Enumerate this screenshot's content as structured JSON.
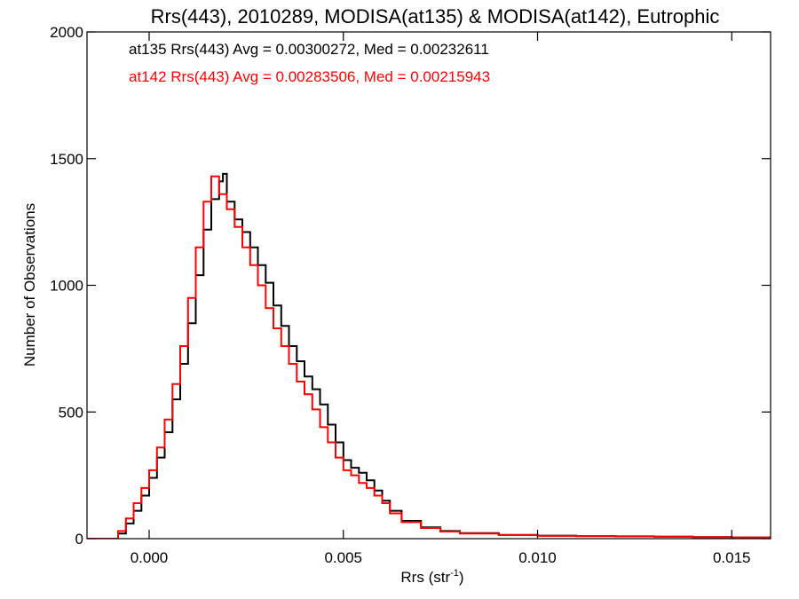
{
  "chart_data": {
    "type": "line",
    "step": true,
    "title": "Rrs(443), 2010289, MODISA(at135) & MODISA(at142), Eutrophic",
    "xlabel": "Rrs (str",
    "xlabel_sup": "-1",
    "xlabel_tail": ")",
    "ylabel": "Number of Observations",
    "xlim": [
      -0.0016,
      0.016
    ],
    "ylim": [
      0,
      2000
    ],
    "xticks": [
      {
        "value": 0.0,
        "label": "0.000"
      },
      {
        "value": 0.005,
        "label": "0.005"
      },
      {
        "value": 0.01,
        "label": "0.010"
      },
      {
        "value": 0.015,
        "label": "0.015"
      }
    ],
    "yticks": [
      {
        "value": 0,
        "label": "0"
      },
      {
        "value": 500,
        "label": "500"
      },
      {
        "value": 1000,
        "label": "1000"
      },
      {
        "value": 1500,
        "label": "1500"
      },
      {
        "value": 2000,
        "label": "2000"
      }
    ],
    "annotations": [
      {
        "text": "at135 Rrs(443) Avg = 0.00300272, Med = 0.00232611",
        "color": "#000000"
      },
      {
        "text": "at142 Rrs(443) Avg = 0.00283506, Med = 0.00215943",
        "color": "#ff0000"
      }
    ],
    "grid": false,
    "series": [
      {
        "color": "#000000",
        "x": [
          -0.0016,
          -0.0009,
          -0.0008,
          -0.0006,
          -0.0004,
          -0.0002,
          0.0,
          0.0002,
          0.0004,
          0.0006,
          0.0008,
          0.001,
          0.0012,
          0.0014,
          0.0016,
          0.0018,
          0.0019,
          0.002,
          0.0022,
          0.0024,
          0.0026,
          0.0028,
          0.003,
          0.0032,
          0.0034,
          0.0036,
          0.0038,
          0.004,
          0.0042,
          0.0044,
          0.0046,
          0.0048,
          0.005,
          0.0052,
          0.0054,
          0.0056,
          0.0058,
          0.006,
          0.0062,
          0.0065,
          0.007,
          0.0075,
          0.008,
          0.009,
          0.01,
          0.011,
          0.012,
          0.013,
          0.014,
          0.015,
          0.016
        ],
        "y": [
          0,
          0,
          20,
          60,
          110,
          170,
          240,
          320,
          420,
          550,
          690,
          850,
          1040,
          1220,
          1340,
          1410,
          1440,
          1330,
          1260,
          1210,
          1150,
          1080,
          1010,
          920,
          840,
          760,
          700,
          640,
          590,
          530,
          450,
          380,
          310,
          280,
          260,
          230,
          190,
          150,
          110,
          70,
          45,
          30,
          22,
          15,
          12,
          10,
          9,
          8,
          6,
          5,
          4
        ]
      },
      {
        "color": "#ff0000",
        "x": [
          -0.0016,
          -0.001,
          -0.0008,
          -0.0006,
          -0.0004,
          -0.0002,
          0.0,
          0.0002,
          0.0004,
          0.0006,
          0.0008,
          0.001,
          0.0012,
          0.0014,
          0.0016,
          0.0018,
          0.002,
          0.0022,
          0.0024,
          0.0026,
          0.0028,
          0.003,
          0.0032,
          0.0034,
          0.0036,
          0.0038,
          0.004,
          0.0042,
          0.0044,
          0.0046,
          0.0048,
          0.005,
          0.0052,
          0.0054,
          0.0056,
          0.0058,
          0.006,
          0.0062,
          0.0065,
          0.007,
          0.0075,
          0.008,
          0.009,
          0.01,
          0.011,
          0.012,
          0.013,
          0.014,
          0.015,
          0.016
        ],
        "y": [
          0,
          0,
          30,
          80,
          140,
          200,
          270,
          360,
          470,
          610,
          760,
          950,
          1150,
          1330,
          1430,
          1360,
          1300,
          1230,
          1150,
          1080,
          1000,
          910,
          830,
          760,
          690,
          620,
          570,
          510,
          440,
          380,
          320,
          270,
          250,
          220,
          200,
          170,
          140,
          100,
          65,
          42,
          28,
          20,
          14,
          11,
          10,
          9,
          8,
          6,
          5,
          4
        ]
      }
    ]
  }
}
